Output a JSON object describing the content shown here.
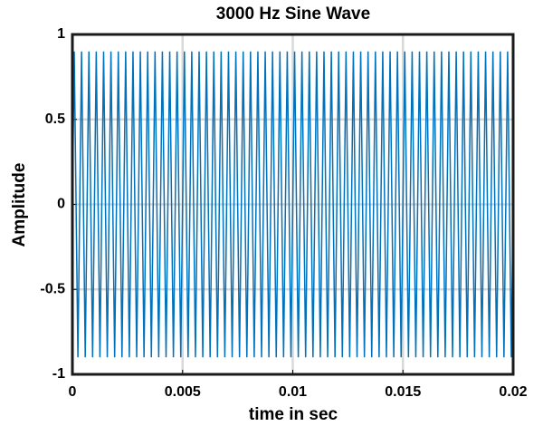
{
  "chart_data": {
    "type": "line",
    "title": "3000 Hz Sine Wave",
    "x_label": "time in sec",
    "y_label": "Amplitude",
    "color": "#0072bd",
    "grid": true,
    "xlim": [
      0,
      0.02
    ],
    "xticks": [
      0,
      0.005,
      0.01,
      0.015,
      0.02
    ],
    "ylim": [
      -1,
      1
    ],
    "yticks": [
      -1,
      -0.5,
      0,
      0.5,
      1
    ],
    "x": [
      0,
      8.3e-05,
      0.000167,
      0.00025,
      0.000333,
      0.000417,
      0.0005,
      0.000583,
      0.000667,
      0.00075,
      0.000833,
      0.000917,
      0.001,
      0.001083,
      0.001167,
      0.00125,
      0.001333,
      0.001417,
      0.0015,
      0.001583,
      0.001667,
      0.00175,
      0.001833,
      0.001917,
      0.002,
      0.002083,
      0.002167,
      0.00225,
      0.002333,
      0.002417,
      0.0025,
      0.002583,
      0.002667,
      0.00275,
      0.002833,
      0.002917,
      0.003,
      0.003083,
      0.003167,
      0.00325,
      0.003333,
      0.003417,
      0.0035,
      0.003583,
      0.003667,
      0.00375,
      0.003833,
      0.003917,
      0.004,
      0.004083,
      0.004167,
      0.00425,
      0.004333,
      0.004417,
      0.0045,
      0.004583,
      0.004667,
      0.00475,
      0.004833,
      0.004917,
      0.005,
      0.005083,
      0.005167,
      0.00525,
      0.005333,
      0.005417,
      0.0055,
      0.005583,
      0.005667,
      0.00575,
      0.005833,
      0.005917,
      0.006,
      0.006083,
      0.006167,
      0.00625,
      0.006333,
      0.006417,
      0.0065,
      0.006583,
      0.006667,
      0.00675,
      0.006833,
      0.006917,
      0.007,
      0.007083,
      0.007167,
      0.00725,
      0.007333,
      0.007417,
      0.0075,
      0.007583,
      0.007667,
      0.00775,
      0.007833,
      0.007917,
      0.008,
      0.008083,
      0.008167,
      0.00825,
      0.008333,
      0.008417,
      0.0085,
      0.008583,
      0.008667,
      0.00875,
      0.008833,
      0.008917,
      0.009,
      0.009083,
      0.009167,
      0.00925,
      0.009333,
      0.009417,
      0.0095,
      0.009583,
      0.009667,
      0.00975,
      0.009833,
      0.009917,
      0.01,
      0.010083,
      0.010167,
      0.01025,
      0.010333,
      0.010417,
      0.0105,
      0.010583,
      0.010667,
      0.01075,
      0.010833,
      0.010917,
      0.011,
      0.011083,
      0.011167,
      0.01125,
      0.011333,
      0.011417,
      0.0115,
      0.011583,
      0.011667,
      0.01175,
      0.011833,
      0.011917,
      0.012,
      0.012083,
      0.012167,
      0.01225,
      0.012333,
      0.012417,
      0.0125,
      0.012583,
      0.012667,
      0.01275,
      0.012833,
      0.012917,
      0.013,
      0.013083,
      0.013167,
      0.01325,
      0.013333,
      0.013417,
      0.0135,
      0.013583,
      0.013667,
      0.01375,
      0.013833,
      0.013917,
      0.014,
      0.014083,
      0.014167,
      0.01425,
      0.014333,
      0.014417,
      0.0145,
      0.014583,
      0.014667,
      0.01475,
      0.014833,
      0.014917,
      0.015,
      0.015083,
      0.015167,
      0.01525,
      0.015333,
      0.015417,
      0.0155,
      0.015583,
      0.015667,
      0.01575,
      0.015833,
      0.015917,
      0.016,
      0.016083,
      0.016167,
      0.01625,
      0.016333,
      0.016417,
      0.0165,
      0.016583,
      0.016667,
      0.01675,
      0.016833,
      0.016917,
      0.017,
      0.017083,
      0.017167,
      0.01725,
      0.017333,
      0.017417,
      0.0175,
      0.017583,
      0.017667,
      0.01775,
      0.017833,
      0.017917,
      0.018,
      0.018083,
      0.018167,
      0.01825,
      0.018333,
      0.018417,
      0.0185,
      0.018583,
      0.018667,
      0.01875,
      0.018833,
      0.018917,
      0.019,
      0.019083,
      0.019167,
      0.01925,
      0.019333,
      0.019417,
      0.0195,
      0.019583,
      0.019667,
      0.01975,
      0.019833,
      0.019917,
      0.02
    ],
    "values": [
      0,
      0.9,
      0,
      -0.9,
      0,
      0.9,
      0,
      -0.9,
      0,
      0.9,
      0,
      -0.9,
      0,
      0.9,
      0,
      -0.9,
      0,
      0.9,
      0,
      -0.9,
      0,
      0.9,
      0,
      -0.9,
      0,
      0.9,
      0,
      -0.9,
      0,
      0.9,
      0,
      -0.9,
      0,
      0.9,
      0,
      -0.9,
      0,
      0.9,
      0,
      -0.9,
      0,
      0.9,
      0,
      -0.9,
      0,
      0.9,
      0,
      -0.9,
      0,
      0.9,
      0,
      -0.9,
      0,
      0.9,
      0,
      -0.9,
      0,
      0.9,
      0,
      -0.9,
      0,
      0.9,
      0,
      -0.9,
      0,
      0.9,
      0,
      -0.9,
      0,
      0.9,
      0,
      -0.9,
      0,
      0.9,
      0,
      -0.9,
      0,
      0.9,
      0,
      -0.9,
      0,
      0.9,
      0,
      -0.9,
      0,
      0.9,
      0,
      -0.9,
      0,
      0.9,
      0,
      -0.9,
      0,
      0.9,
      0,
      -0.9,
      0,
      0.9,
      0,
      -0.9,
      0,
      0.9,
      0,
      -0.9,
      0,
      0.9,
      0,
      -0.9,
      0,
      0.9,
      0,
      -0.9,
      0,
      0.9,
      0,
      -0.9,
      0,
      0.9,
      0,
      -0.9,
      0,
      0.9,
      0,
      -0.9,
      0,
      0.9,
      0,
      -0.9,
      0,
      0.9,
      0,
      -0.9,
      0,
      0.9,
      0,
      -0.9,
      0,
      0.9,
      0,
      -0.9,
      0,
      0.9,
      0,
      -0.9,
      0,
      0.9,
      0,
      -0.9,
      0,
      0.9,
      0,
      -0.9,
      0,
      0.9,
      0,
      -0.9,
      0,
      0.9,
      0,
      -0.9,
      0,
      0.9,
      0,
      -0.9,
      0,
      0.9,
      0,
      -0.9,
      0,
      0.9,
      0,
      -0.9,
      0,
      0.9,
      0,
      -0.9,
      0,
      0.9,
      0,
      -0.9,
      0,
      0.9,
      0,
      -0.9,
      0,
      0.9,
      0,
      -0.9,
      0,
      0.9,
      0,
      -0.9,
      0,
      0.9,
      0,
      -0.9,
      0,
      0.9,
      0,
      -0.9,
      0,
      0.9,
      0,
      -0.9,
      0,
      0.9,
      0,
      -0.9,
      0,
      0.9,
      0,
      -0.9,
      0,
      0.9,
      0,
      -0.9,
      0,
      0.9,
      0,
      -0.9,
      0,
      0.9,
      0,
      -0.9,
      0,
      0.9,
      0,
      -0.9,
      0,
      0.9,
      0,
      -0.9,
      0,
      0.9,
      0,
      -0.9,
      0,
      0.9,
      0,
      -0.9,
      0
    ]
  }
}
